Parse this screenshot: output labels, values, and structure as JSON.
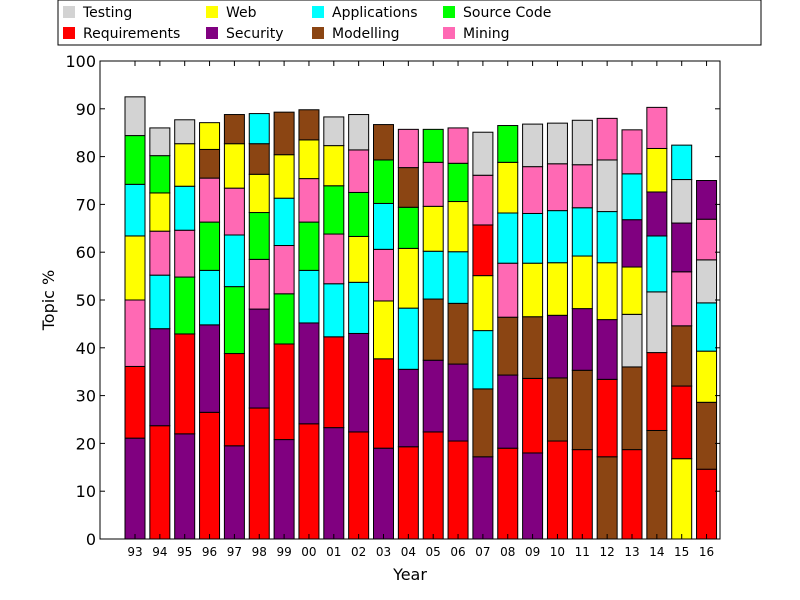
{
  "chart_data": {
    "type": "bar",
    "stacked": true,
    "xlabel": "Year",
    "ylabel": "Topic %",
    "ylim": [
      0,
      100
    ],
    "yticks": [
      0,
      10,
      20,
      30,
      40,
      50,
      60,
      70,
      80,
      90,
      100
    ],
    "categories": [
      "93",
      "94",
      "95",
      "96",
      "97",
      "98",
      "99",
      "00",
      "01",
      "02",
      "03",
      "04",
      "05",
      "06",
      "07",
      "08",
      "09",
      "10",
      "11",
      "12",
      "13",
      "14",
      "15",
      "16"
    ],
    "topic_colors": {
      "Testing": "#d3d3d3",
      "Requirements": "#ff0000",
      "Web": "#ffff00",
      "Security": "#800080",
      "Applications": "#00ffff",
      "Modelling": "#8b4513",
      "Source Code": "#00ff00",
      "Mining": "#ff69b4"
    },
    "legend": {
      "placement": "top",
      "entries": [
        "Testing",
        "Requirements",
        "Web",
        "Security",
        "Applications",
        "Modelling",
        "Source Code",
        "Mining"
      ]
    },
    "stacks": [
      [
        [
          "Security",
          21.1
        ],
        [
          "Requirements",
          15.0
        ],
        [
          "Mining",
          13.9
        ],
        [
          "Web",
          13.4
        ],
        [
          "Applications",
          10.8
        ],
        [
          "Source Code",
          10.2
        ],
        [
          "Testing",
          8.1
        ]
      ],
      [
        [
          "Requirements",
          23.7
        ],
        [
          "Security",
          20.3
        ],
        [
          "Applications",
          11.2
        ],
        [
          "Mining",
          9.2
        ],
        [
          "Web",
          8.0
        ],
        [
          "Source Code",
          7.8
        ],
        [
          "Testing",
          5.8
        ]
      ],
      [
        [
          "Security",
          22.0
        ],
        [
          "Requirements",
          20.9
        ],
        [
          "Source Code",
          11.9
        ],
        [
          "Mining",
          9.8
        ],
        [
          "Applications",
          9.2
        ],
        [
          "Web",
          8.9
        ],
        [
          "Testing",
          5.0
        ]
      ],
      [
        [
          "Requirements",
          26.5
        ],
        [
          "Security",
          18.3
        ],
        [
          "Applications",
          11.4
        ],
        [
          "Source Code",
          10.1
        ],
        [
          "Mining",
          9.2
        ],
        [
          "Modelling",
          6.0
        ],
        [
          "Web",
          5.6
        ]
      ],
      [
        [
          "Security",
          19.5
        ],
        [
          "Requirements",
          19.3
        ],
        [
          "Source Code",
          14.0
        ],
        [
          "Applications",
          10.8
        ],
        [
          "Mining",
          9.8
        ],
        [
          "Web",
          9.3
        ],
        [
          "Modelling",
          6.1
        ]
      ],
      [
        [
          "Requirements",
          27.4
        ],
        [
          "Security",
          20.7
        ],
        [
          "Mining",
          10.4
        ],
        [
          "Source Code",
          9.8
        ],
        [
          "Web",
          8.0
        ],
        [
          "Modelling",
          6.4
        ],
        [
          "Applications",
          6.3
        ]
      ],
      [
        [
          "Security",
          20.8
        ],
        [
          "Requirements",
          20.0
        ],
        [
          "Source Code",
          10.5
        ],
        [
          "Mining",
          10.1
        ],
        [
          "Applications",
          9.9
        ],
        [
          "Web",
          9.1
        ],
        [
          "Modelling",
          8.9
        ]
      ],
      [
        [
          "Requirements",
          24.1
        ],
        [
          "Security",
          21.1
        ],
        [
          "Applications",
          11.0
        ],
        [
          "Source Code",
          10.1
        ],
        [
          "Mining",
          9.1
        ],
        [
          "Web",
          8.1
        ],
        [
          "Modelling",
          6.3
        ]
      ],
      [
        [
          "Security",
          23.3
        ],
        [
          "Requirements",
          19.0
        ],
        [
          "Applications",
          11.1
        ],
        [
          "Mining",
          10.4
        ],
        [
          "Source Code",
          10.1
        ],
        [
          "Web",
          8.4
        ],
        [
          "Testing",
          6.0
        ]
      ],
      [
        [
          "Requirements",
          22.4
        ],
        [
          "Security",
          20.6
        ],
        [
          "Applications",
          10.7
        ],
        [
          "Web",
          9.6
        ],
        [
          "Source Code",
          9.2
        ],
        [
          "Mining",
          8.9
        ],
        [
          "Testing",
          7.4
        ]
      ],
      [
        [
          "Security",
          19.0
        ],
        [
          "Requirements",
          18.7
        ],
        [
          "Web",
          12.1
        ],
        [
          "Mining",
          10.8
        ],
        [
          "Applications",
          9.6
        ],
        [
          "Source Code",
          9.1
        ],
        [
          "Modelling",
          7.4
        ]
      ],
      [
        [
          "Requirements",
          19.3
        ],
        [
          "Security",
          16.2
        ],
        [
          "Applications",
          12.8
        ],
        [
          "Web",
          12.5
        ],
        [
          "Source Code",
          8.6
        ],
        [
          "Modelling",
          8.3
        ],
        [
          "Mining",
          8.0
        ]
      ],
      [
        [
          "Requirements",
          22.4
        ],
        [
          "Security",
          15.0
        ],
        [
          "Modelling",
          12.8
        ],
        [
          "Applications",
          10.0
        ],
        [
          "Web",
          9.4
        ],
        [
          "Mining",
          9.2
        ],
        [
          "Source Code",
          6.9
        ]
      ],
      [
        [
          "Requirements",
          20.5
        ],
        [
          "Security",
          16.1
        ],
        [
          "Modelling",
          12.7
        ],
        [
          "Applications",
          10.8
        ],
        [
          "Web",
          10.5
        ],
        [
          "Source Code",
          8.0
        ],
        [
          "Mining",
          7.4
        ]
      ],
      [
        [
          "Security",
          17.2
        ],
        [
          "Modelling",
          14.2
        ],
        [
          "Applications",
          12.2
        ],
        [
          "Web",
          11.5
        ],
        [
          "Requirements",
          10.6
        ],
        [
          "Mining",
          10.4
        ],
        [
          "Testing",
          9.0
        ]
      ],
      [
        [
          "Requirements",
          19.0
        ],
        [
          "Security",
          15.3
        ],
        [
          "Modelling",
          12.1
        ],
        [
          "Mining",
          11.3
        ],
        [
          "Applications",
          10.5
        ],
        [
          "Web",
          10.6
        ],
        [
          "Source Code",
          7.7
        ]
      ],
      [
        [
          "Security",
          18.0
        ],
        [
          "Requirements",
          15.6
        ],
        [
          "Modelling",
          12.9
        ],
        [
          "Web",
          11.2
        ],
        [
          "Applications",
          10.4
        ],
        [
          "Mining",
          9.8
        ],
        [
          "Testing",
          8.9
        ]
      ],
      [
        [
          "Requirements",
          20.5
        ],
        [
          "Modelling",
          13.2
        ],
        [
          "Security",
          13.1
        ],
        [
          "Web",
          11.0
        ],
        [
          "Applications",
          10.9
        ],
        [
          "Mining",
          9.8
        ],
        [
          "Testing",
          8.5
        ]
      ],
      [
        [
          "Requirements",
          18.7
        ],
        [
          "Modelling",
          16.6
        ],
        [
          "Security",
          12.9
        ],
        [
          "Web",
          11.0
        ],
        [
          "Applications",
          10.1
        ],
        [
          "Mining",
          9.0
        ],
        [
          "Testing",
          9.3
        ]
      ],
      [
        [
          "Modelling",
          17.2
        ],
        [
          "Requirements",
          16.2
        ],
        [
          "Security",
          12.5
        ],
        [
          "Web",
          11.9
        ],
        [
          "Applications",
          10.7
        ],
        [
          "Testing",
          10.8
        ],
        [
          "Mining",
          8.7
        ]
      ],
      [
        [
          "Requirements",
          18.7
        ],
        [
          "Modelling",
          17.3
        ],
        [
          "Testing",
          11.0
        ],
        [
          "Web",
          9.9
        ],
        [
          "Security",
          9.9
        ],
        [
          "Applications",
          9.6
        ],
        [
          "Mining",
          9.2
        ]
      ],
      [
        [
          "Modelling",
          22.7
        ],
        [
          "Requirements",
          16.3
        ],
        [
          "Testing",
          12.7
        ],
        [
          "Applications",
          11.7
        ],
        [
          "Security",
          9.2
        ],
        [
          "Web",
          9.1
        ],
        [
          "Mining",
          8.6
        ]
      ],
      [
        [
          "Web",
          16.8
        ],
        [
          "Requirements",
          15.2
        ],
        [
          "Modelling",
          12.6
        ],
        [
          "Mining",
          11.3
        ],
        [
          "Security",
          10.2
        ],
        [
          "Testing",
          9.1
        ],
        [
          "Applications",
          7.2
        ]
      ],
      [
        [
          "Requirements",
          14.6
        ],
        [
          "Modelling",
          14.0
        ],
        [
          "Web",
          10.7
        ],
        [
          "Applications",
          10.1
        ],
        [
          "Testing",
          9.0
        ],
        [
          "Mining",
          8.5
        ],
        [
          "Security",
          8.1
        ]
      ]
    ]
  }
}
